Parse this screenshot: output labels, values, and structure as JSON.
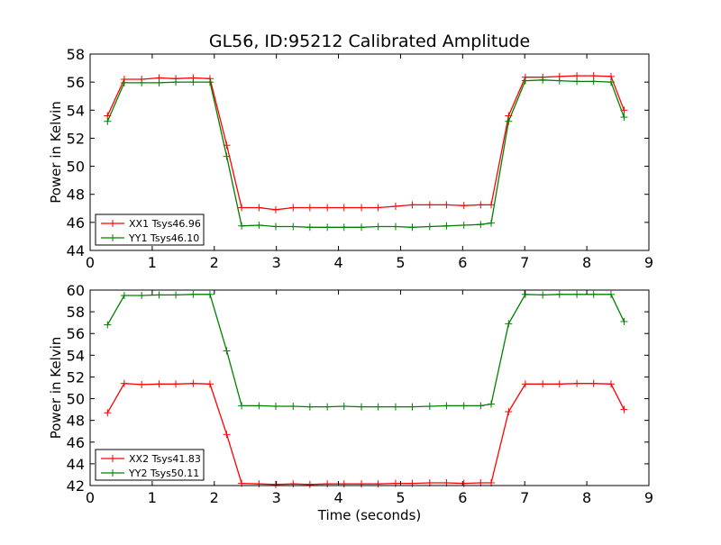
{
  "figure_title": "GL56, ID:95212 Calibrated Amplitude",
  "colors": {
    "xx": "#ff0000",
    "yy": "#008000",
    "frame": "#000000"
  },
  "chart_data": [
    {
      "type": "line",
      "title": "GL56, ID:95212 Calibrated Amplitude",
      "xlabel": "",
      "ylabel": "Power in Kelvin",
      "xlim": [
        0,
        9
      ],
      "ylim": [
        44,
        58
      ],
      "xticks": [
        0,
        1,
        2,
        3,
        4,
        5,
        6,
        7,
        8,
        9
      ],
      "yticks": [
        44,
        46,
        48,
        50,
        52,
        54,
        56,
        58
      ],
      "legend_position": "lower-left",
      "x": [
        0.28,
        0.55,
        0.83,
        1.11,
        1.38,
        1.66,
        1.93,
        2.2,
        2.44,
        2.72,
        2.99,
        3.27,
        3.54,
        3.82,
        4.09,
        4.37,
        4.64,
        4.92,
        5.19,
        5.47,
        5.74,
        6.02,
        6.29,
        6.46,
        6.74,
        7.01,
        7.29,
        7.56,
        7.84,
        8.11,
        8.39,
        8.6
      ],
      "series": [
        {
          "name": "XX1 Tsys46.96",
          "color": "#ff0000",
          "values": [
            53.6,
            56.2,
            56.2,
            56.3,
            56.25,
            56.3,
            56.25,
            51.5,
            47.05,
            47.05,
            46.9,
            47.05,
            47.05,
            47.05,
            47.05,
            47.05,
            47.05,
            47.15,
            47.25,
            47.25,
            47.25,
            47.2,
            47.25,
            47.25,
            53.6,
            56.35,
            56.35,
            56.4,
            56.45,
            56.45,
            56.4,
            54.0
          ]
        },
        {
          "name": "YY1 Tsys46.10",
          "color": "#008000",
          "values": [
            53.2,
            55.95,
            55.95,
            55.95,
            56.0,
            56.0,
            56.0,
            50.7,
            45.75,
            45.8,
            45.7,
            45.7,
            45.65,
            45.65,
            45.65,
            45.65,
            45.7,
            45.7,
            45.65,
            45.7,
            45.75,
            45.8,
            45.85,
            45.95,
            53.2,
            56.1,
            56.15,
            56.1,
            56.05,
            56.05,
            56.0,
            53.5
          ]
        }
      ]
    },
    {
      "type": "line",
      "title": "",
      "xlabel": "Time (seconds)",
      "ylabel": "Power in Kelvin",
      "xlim": [
        0,
        9
      ],
      "ylim": [
        42,
        60
      ],
      "xticks": [
        0,
        1,
        2,
        3,
        4,
        5,
        6,
        7,
        8,
        9
      ],
      "yticks": [
        42,
        44,
        46,
        48,
        50,
        52,
        54,
        56,
        58,
        60
      ],
      "legend_position": "lower-left",
      "x": [
        0.28,
        0.55,
        0.83,
        1.11,
        1.38,
        1.66,
        1.93,
        2.2,
        2.44,
        2.72,
        2.99,
        3.27,
        3.54,
        3.82,
        4.09,
        4.37,
        4.64,
        4.92,
        5.19,
        5.47,
        5.74,
        6.02,
        6.29,
        6.46,
        6.74,
        7.01,
        7.29,
        7.56,
        7.84,
        8.11,
        8.39,
        8.6
      ],
      "series": [
        {
          "name": "XX2 Tsys41.83",
          "color": "#ff0000",
          "values": [
            48.7,
            51.4,
            51.3,
            51.35,
            51.35,
            51.4,
            51.35,
            46.7,
            42.2,
            42.15,
            42.1,
            42.15,
            42.1,
            42.15,
            42.15,
            42.15,
            42.15,
            42.2,
            42.2,
            42.25,
            42.25,
            42.2,
            42.25,
            42.25,
            48.8,
            51.35,
            51.35,
            51.35,
            51.4,
            51.4,
            51.35,
            49.0
          ]
        },
        {
          "name": "YY2 Tsys50.11",
          "color": "#008000",
          "values": [
            56.8,
            59.5,
            59.5,
            59.55,
            59.55,
            59.6,
            59.6,
            54.4,
            49.35,
            49.35,
            49.3,
            49.3,
            49.25,
            49.25,
            49.3,
            49.25,
            49.25,
            49.25,
            49.25,
            49.3,
            49.35,
            49.35,
            49.35,
            49.5,
            56.9,
            59.6,
            59.55,
            59.6,
            59.6,
            59.6,
            59.6,
            57.1
          ]
        }
      ]
    }
  ]
}
